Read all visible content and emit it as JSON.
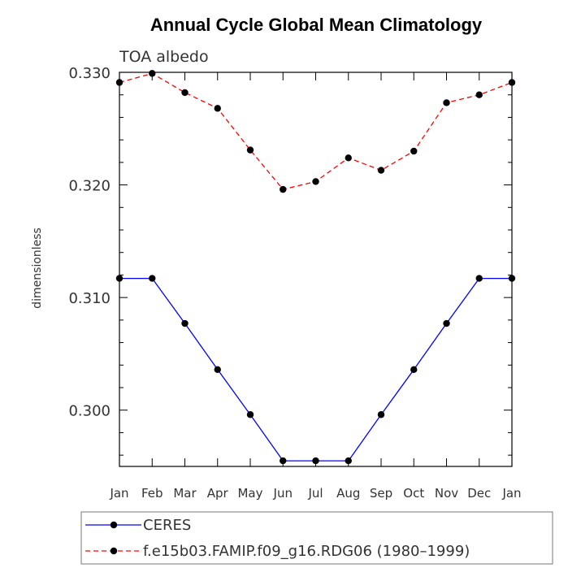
{
  "chart_data": {
    "type": "line",
    "title": "Annual Cycle Global Mean Climatology",
    "subtitle": "TOA albedo",
    "xlabel": "",
    "ylabel": "dimensionless",
    "categories": [
      "Jan",
      "Feb",
      "Mar",
      "Apr",
      "May",
      "Jun",
      "Jul",
      "Aug",
      "Sep",
      "Oct",
      "Nov",
      "Dec",
      "Jan"
    ],
    "ylim": [
      0.295,
      0.33
    ],
    "yticks": [
      "0.300",
      "0.310",
      "0.320",
      "0.330"
    ],
    "grid": false,
    "legend_position": "bottom",
    "series": [
      {
        "name": "CERES",
        "color": "#0000ff",
        "dash": "solid",
        "marker": "dot",
        "values": [
          0.3117,
          0.3117,
          0.3077,
          0.3036,
          0.2996,
          0.2955,
          0.2955,
          0.2955,
          0.2996,
          0.3036,
          0.3077,
          0.3117,
          0.3117
        ]
      },
      {
        "name": "f.e15b03.FAMIP.f09_g16.RDG06 (1980–1999)",
        "color": "#ff0000",
        "dash": "dashed",
        "marker": "dot",
        "values": [
          0.3291,
          0.3299,
          0.3282,
          0.3268,
          0.3231,
          0.3196,
          0.3203,
          0.3224,
          0.3213,
          0.323,
          0.3273,
          0.328,
          0.3291
        ]
      }
    ]
  }
}
